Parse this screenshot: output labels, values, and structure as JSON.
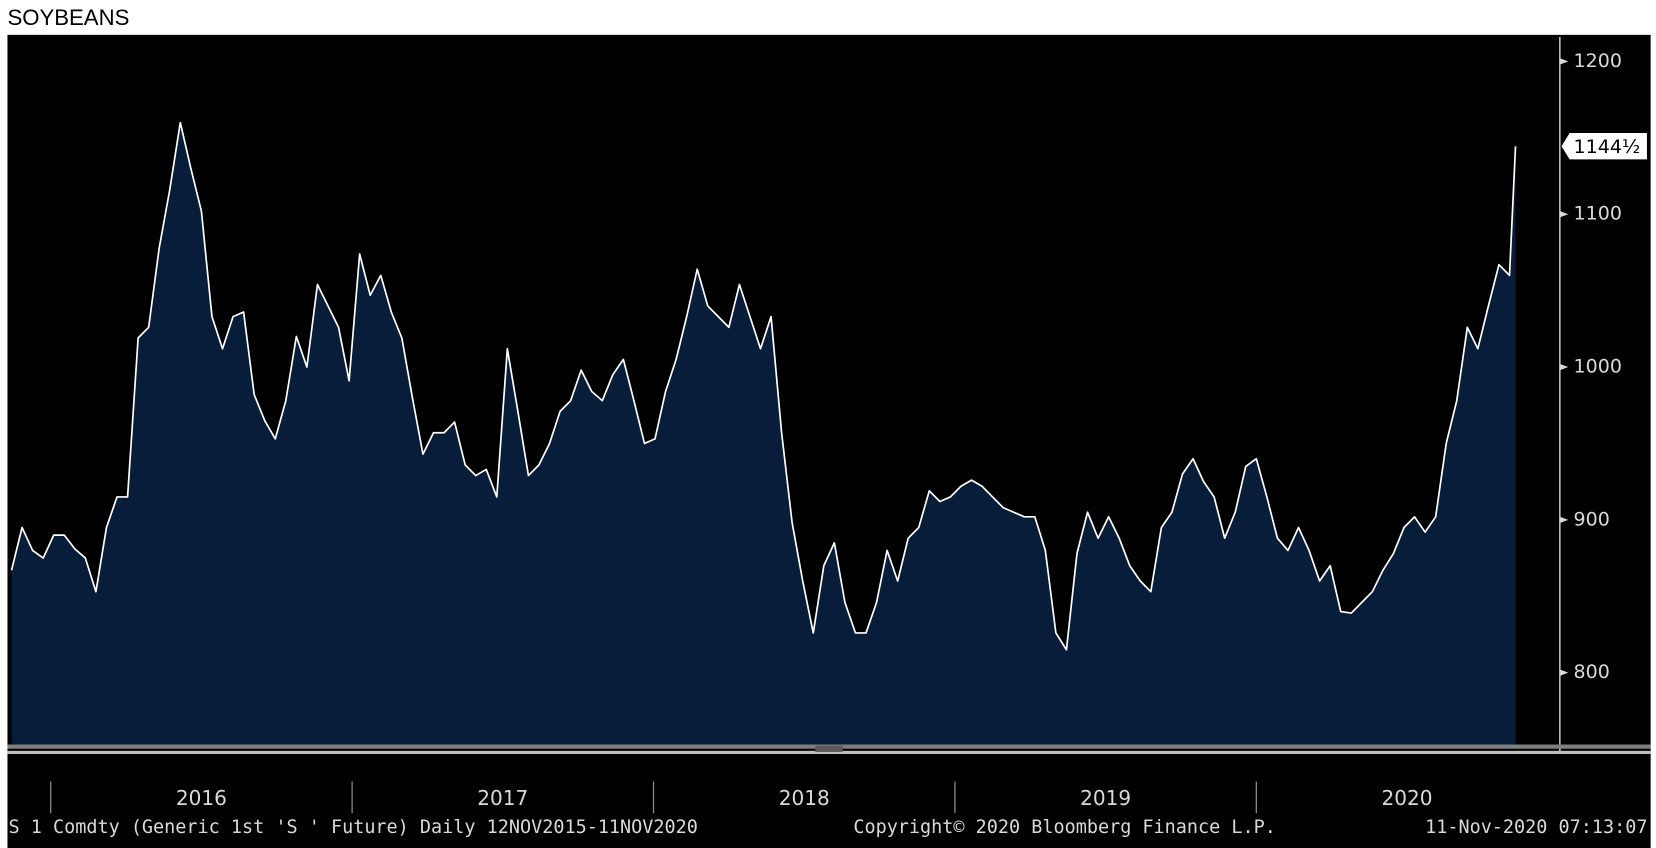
{
  "chart_data": {
    "type": "area",
    "title": "SOYBEANS",
    "color": "#ffffff",
    "fill": "#071d3a",
    "x": [
      2015.87,
      2015.905,
      2015.94,
      2015.975,
      2016.01,
      2016.045,
      2016.08,
      2016.115,
      2016.15,
      2016.185,
      2016.22,
      2016.255,
      2016.29,
      2016.325,
      2016.36,
      2016.395,
      2016.43,
      2016.465,
      2016.5,
      2016.535,
      2016.57,
      2016.605,
      2016.64,
      2016.675,
      2016.71,
      2016.745,
      2016.78,
      2016.815,
      2016.85,
      2016.885,
      2016.92,
      2016.955,
      2016.99,
      2017.025,
      2017.06,
      2017.095,
      2017.13,
      2017.165,
      2017.2,
      2017.235,
      2017.27,
      2017.305,
      2017.34,
      2017.375,
      2017.41,
      2017.445,
      2017.48,
      2017.515,
      2017.55,
      2017.585,
      2017.62,
      2017.655,
      2017.69,
      2017.725,
      2017.76,
      2017.795,
      2017.83,
      2017.865,
      2017.9,
      2017.935,
      2017.97,
      2018.005,
      2018.04,
      2018.075,
      2018.11,
      2018.145,
      2018.18,
      2018.215,
      2018.25,
      2018.285,
      2018.32,
      2018.355,
      2018.39,
      2018.425,
      2018.46,
      2018.495,
      2018.53,
      2018.565,
      2018.6,
      2018.635,
      2018.67,
      2018.705,
      2018.74,
      2018.775,
      2018.81,
      2018.845,
      2018.88,
      2018.915,
      2018.95,
      2018.985,
      2019.02,
      2019.055,
      2019.09,
      2019.125,
      2019.16,
      2019.195,
      2019.23,
      2019.265,
      2019.3,
      2019.335,
      2019.37,
      2019.405,
      2019.44,
      2019.475,
      2019.51,
      2019.545,
      2019.58,
      2019.615,
      2019.65,
      2019.685,
      2019.72,
      2019.755,
      2019.79,
      2019.825,
      2019.86,
      2019.895,
      2019.93,
      2019.965,
      2020.0,
      2020.035,
      2020.07,
      2020.105,
      2020.14,
      2020.175,
      2020.21,
      2020.245,
      2020.28,
      2020.315,
      2020.35,
      2020.385,
      2020.42,
      2020.455,
      2020.49,
      2020.525,
      2020.56,
      2020.595,
      2020.63,
      2020.665,
      2020.7,
      2020.735,
      2020.77,
      2020.805,
      2020.84,
      2020.86
    ],
    "values": [
      867,
      895,
      880,
      875,
      890,
      890,
      881,
      875,
      853,
      895,
      915,
      915,
      1019,
      1026,
      1078,
      1116,
      1160,
      1130,
      1102,
      1033,
      1012,
      1033,
      1036,
      982,
      965,
      953,
      978,
      1020,
      1000,
      1054,
      1040,
      1026,
      991,
      1074,
      1047,
      1060,
      1036,
      1019,
      980,
      943,
      957,
      957,
      964,
      936,
      929,
      933,
      915,
      1012,
      971,
      929,
      936,
      950,
      971,
      978,
      998,
      984,
      978,
      995,
      1005,
      978,
      950,
      953,
      984,
      1005,
      1033,
      1064,
      1040,
      1033,
      1026,
      1054,
      1033,
      1012,
      1033,
      957,
      898,
      860,
      826,
      870,
      885,
      846,
      826,
      826,
      846,
      880,
      860,
      888,
      895,
      919,
      912,
      915,
      922,
      926,
      922,
      915,
      908,
      905,
      902,
      902,
      880,
      826,
      815,
      878,
      905,
      888,
      902,
      888,
      870,
      860,
      853,
      895,
      905,
      930,
      940,
      925,
      915,
      888,
      905,
      935,
      940,
      915,
      888,
      880,
      895,
      880,
      860,
      870,
      840,
      839,
      846,
      853,
      867,
      878,
      895,
      902,
      892,
      902,
      950,
      978,
      1026,
      1012,
      1040,
      1067,
      1060,
      1144.5
    ],
    "last_label": "1144½",
    "xlim": [
      2015.86,
      2021.0
    ],
    "xticks": [
      2016,
      2017,
      2018,
      2019,
      2020
    ],
    "ylim": [
      753,
      1216
    ],
    "yticks": [
      800,
      900,
      1000,
      1100,
      1200
    ],
    "footer": {
      "left": "S 1 Comdty (Generic 1st 'S ' Future)  Daily 12NOV2015-11NOV2020",
      "center": "Copyright© 2020 Bloomberg Finance L.P.",
      "right": "11-Nov-2020 07:13:07"
    }
  }
}
